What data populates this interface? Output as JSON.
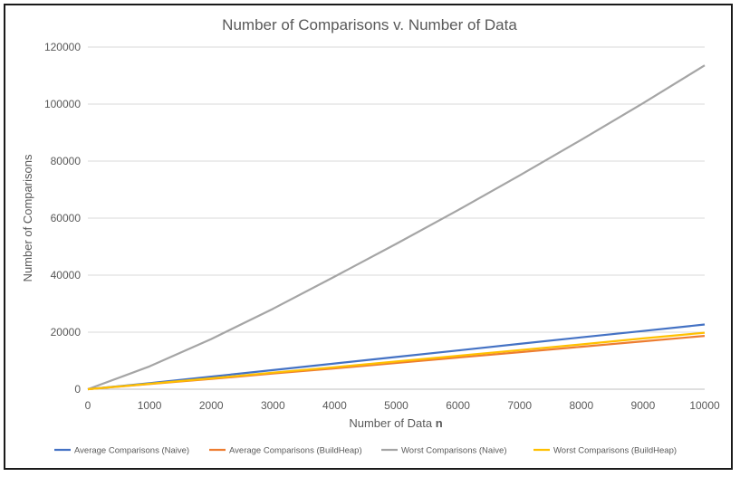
{
  "chart_data": {
    "type": "line",
    "title": "Number of Comparisons v. Number of Data",
    "xlabel_main": "Number of Data ",
    "xlabel_bold": "n",
    "ylabel": "Number of Comparisons",
    "xlim": [
      0,
      10000
    ],
    "ylim": [
      0,
      120000
    ],
    "x_ticks": [
      "0",
      "1000",
      "2000",
      "3000",
      "4000",
      "5000",
      "6000",
      "7000",
      "8000",
      "9000",
      "10000"
    ],
    "y_ticks": [
      "0",
      "20000",
      "40000",
      "60000",
      "80000",
      "100000",
      "120000"
    ],
    "grid": "horizontal",
    "legend_position": "bottom",
    "x": [
      0,
      1000,
      2000,
      3000,
      4000,
      5000,
      6000,
      7000,
      8000,
      9000,
      10000
    ],
    "series": [
      {
        "name": "Average Comparisons (Naive)",
        "color": "#4472C4",
        "values": [
          0,
          2100,
          4400,
          6700,
          9000,
          11300,
          13600,
          15900,
          18200,
          20400,
          22700
        ]
      },
      {
        "name": "Average Comparisons (BuildHeap)",
        "color": "#ED7D31",
        "values": [
          0,
          1800,
          3600,
          5500,
          7300,
          9200,
          11100,
          13000,
          14900,
          16800,
          18700
        ]
      },
      {
        "name": "Worst Comparisons (Naive)",
        "color": "#A5A5A5",
        "values": [
          0,
          8000,
          17600,
          28200,
          39500,
          51000,
          62800,
          75000,
          87500,
          100300,
          113600
        ]
      },
      {
        "name": "Worst Comparisons (BuildHeap)",
        "color": "#FFC000",
        "values": [
          0,
          1900,
          3800,
          5800,
          7700,
          9700,
          11700,
          13700,
          15700,
          17800,
          19800
        ]
      }
    ]
  }
}
